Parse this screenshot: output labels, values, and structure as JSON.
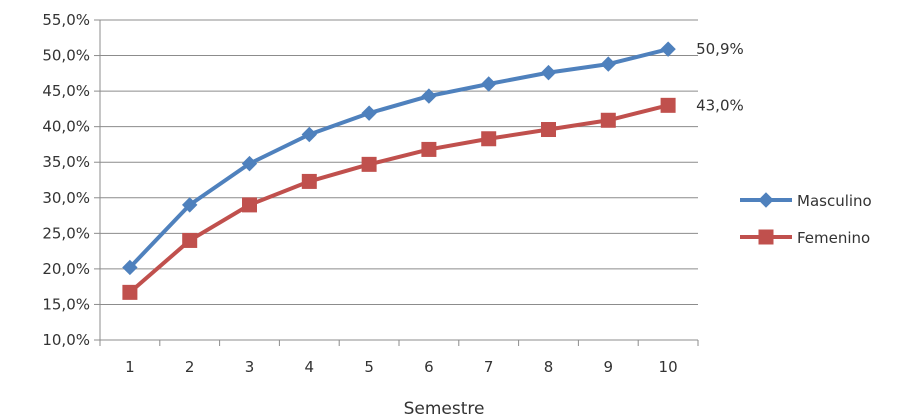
{
  "chart_data": {
    "type": "line",
    "title": "",
    "xlabel": "Semestre",
    "ylabel": "",
    "categories": [
      "1",
      "2",
      "3",
      "4",
      "5",
      "6",
      "7",
      "8",
      "9",
      "10"
    ],
    "yticks": [
      "10,0%",
      "15,0%",
      "20,0%",
      "25,0%",
      "30,0%",
      "35,0%",
      "40,0%",
      "45,0%",
      "50,0%",
      "55,0%"
    ],
    "ylim": [
      10,
      55
    ],
    "grid": true,
    "legend_position": "right",
    "series": [
      {
        "name": "Masculino",
        "marker": "diamond",
        "color": "#4F81BD",
        "values": [
          20.2,
          29.0,
          34.8,
          38.9,
          41.9,
          44.3,
          46.0,
          47.6,
          48.8,
          50.9
        ],
        "end_label": "50,9%"
      },
      {
        "name": "Femenino",
        "marker": "square",
        "color": "#C0504D",
        "values": [
          16.7,
          24.0,
          29.0,
          32.3,
          34.7,
          36.8,
          38.3,
          39.6,
          40.9,
          43.0
        ],
        "end_label": "43,0%"
      }
    ]
  }
}
